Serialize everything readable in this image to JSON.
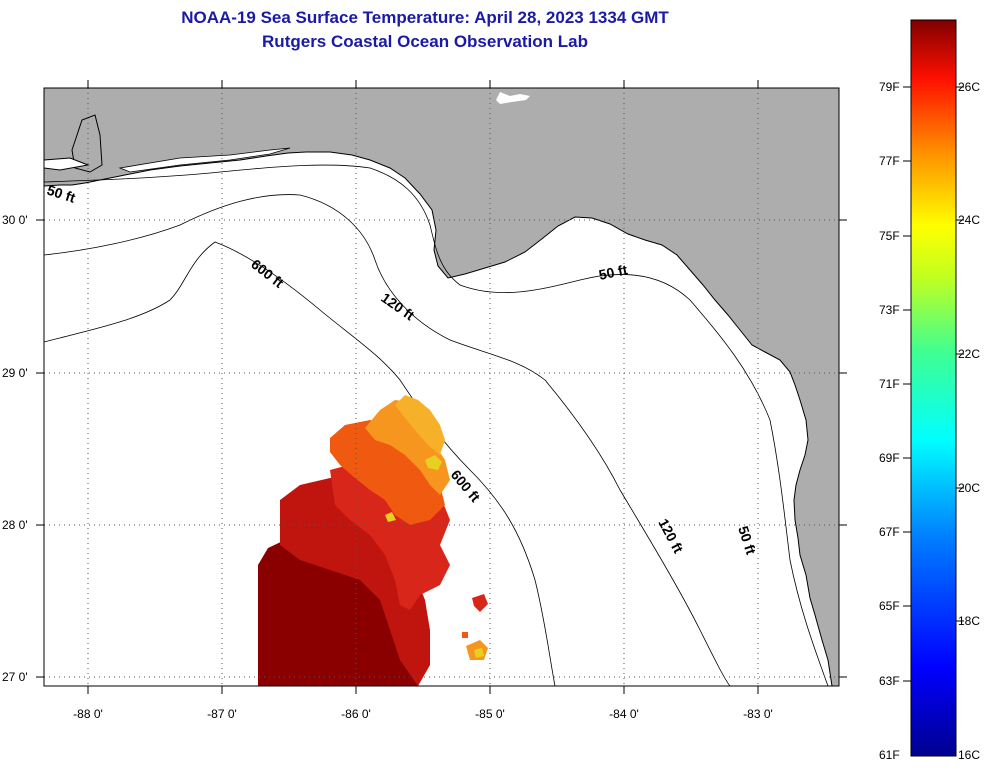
{
  "title": {
    "line1": "NOAA-19 Sea Surface Temperature:  April 28, 2023 1334 GMT",
    "line2": "Rutgers Coastal Ocean Observation Lab"
  },
  "axes": {
    "lon_labels": [
      "-88 0'",
      "-87 0'",
      "-86 0'",
      "-85 0'",
      "-84 0'",
      "-83 0'"
    ],
    "lat_labels": [
      "30 0'",
      "29 0'",
      "28 0'",
      "27 0'"
    ]
  },
  "contours": {
    "label_50ft": "50 ft",
    "label_120ft": "120 ft",
    "label_600ft": "600 ft"
  },
  "colors": {
    "land": "#adadad",
    "ocean": "#ffffff",
    "coast": "#000000",
    "sst_dark": "#8a0000",
    "sst_red": "#d41a10",
    "sst_orange": "#f05a10",
    "sst_light_orange": "#f7961e",
    "sst_yellow": "#e8d020"
  },
  "colorbar": {
    "fahrenheit": [
      "79F",
      "77F",
      "75F",
      "73F",
      "71F",
      "69F",
      "67F",
      "65F",
      "63F",
      "61F"
    ],
    "celsius": [
      "26C",
      "24C",
      "22C",
      "20C",
      "18C",
      "16C"
    ]
  }
}
